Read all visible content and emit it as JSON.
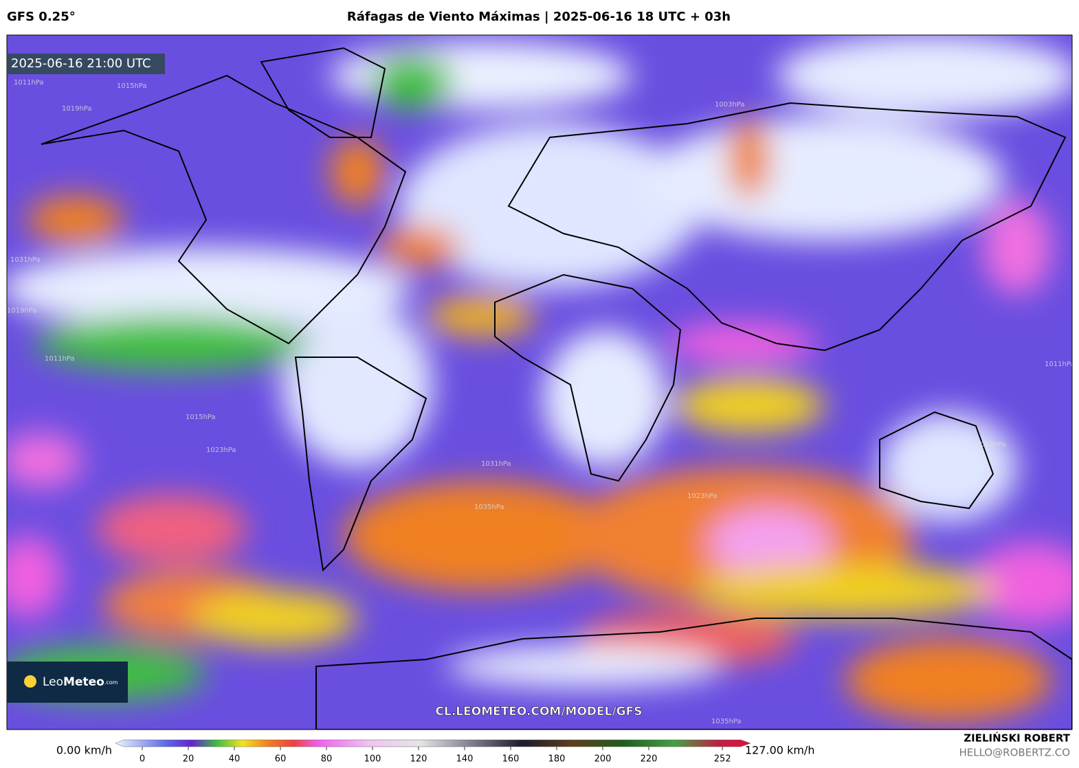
{
  "header": {
    "model": "GFS 0.25°",
    "title": "Ráfagas de Viento Máximas | 2025-06-16 18 UTC + 03h"
  },
  "map": {
    "valid_time": "2025-06-16 21:00 UTC",
    "url": "CL.LEOMETEO.COM/MODEL/GFS",
    "isobar_labels": [
      "1011hPa",
      "1015hPa",
      "1019hPa",
      "1031hPa",
      "1019hPa",
      "1011hPa",
      "1015hPa",
      "1023hPa",
      "1031hPa",
      "1035hPa",
      "1023hPa",
      "1003hPa",
      "1019hPa",
      "1011hPa",
      "1035hPa"
    ]
  },
  "logo": {
    "leo": "Leo",
    "meteo": "Meteo",
    "com": ".com"
  },
  "colorbar": {
    "min_label": "0.00 km/h",
    "max_label": "127.00 km/h",
    "ticks": [
      0,
      20,
      40,
      60,
      80,
      100,
      120,
      140,
      160,
      180,
      200,
      220,
      252
    ]
  },
  "credit": {
    "name": "ZIELIŃSKI ROBERT",
    "email": "HELLO@ROBERTZ.CO"
  }
}
